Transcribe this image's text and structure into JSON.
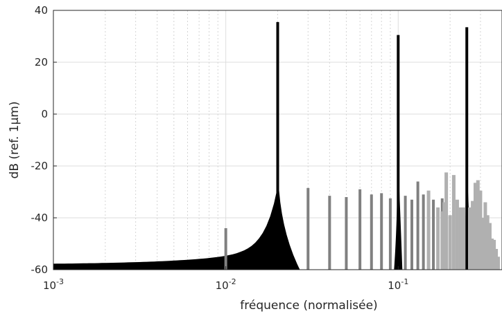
{
  "chart_data": {
    "type": "bar",
    "title": "",
    "xlabel": "fréquence (normalisée)",
    "ylabel": "dB (ref. 1μm)",
    "xscale": "log",
    "xlim": [
      0.001,
      0.4
    ],
    "ylim": [
      -60,
      40
    ],
    "grid": true,
    "x_ticks": [
      {
        "value": 0.001,
        "base": "10",
        "exp": "-3"
      },
      {
        "value": 0.01,
        "base": "10",
        "exp": "-2"
      },
      {
        "value": 0.1,
        "base": "10",
        "exp": "-1"
      }
    ],
    "y_ticks": [
      {
        "value": 40,
        "label": "40"
      },
      {
        "value": 20,
        "label": "20"
      },
      {
        "value": 0,
        "label": "0"
      },
      {
        "value": -20,
        "label": "-20"
      },
      {
        "value": -40,
        "label": "-40"
      },
      {
        "value": -60,
        "label": "-60"
      }
    ],
    "series": [
      {
        "style": "peaks",
        "color": "#000000",
        "peaks": [
          {
            "freq": 0.02,
            "db": 35.5,
            "spread_db": [
              -58,
              -52,
              -48,
              -44,
              -40,
              -36
            ]
          },
          {
            "freq": 0.1,
            "db": 30.5,
            "spread_db": [
              -60,
              -55,
              -50,
              -45
            ]
          },
          {
            "freq": 0.25,
            "db": 33.5,
            "spread_db": [
              -60,
              -55,
              -50
            ]
          }
        ]
      },
      {
        "style": "harmonics",
        "color": "#808080",
        "x": [
          0.01,
          0.03,
          0.04,
          0.05,
          0.06,
          0.07,
          0.08,
          0.09,
          0.11,
          0.12,
          0.13,
          0.14,
          0.15,
          0.16,
          0.17,
          0.18,
          0.19
        ],
        "values": [
          -44,
          -28.5,
          -31.5,
          -32,
          -29,
          -31,
          -30.5,
          -32.5,
          -31.5,
          -33,
          -26,
          -31,
          -34,
          -33,
          -41,
          -32.5,
          -32
        ]
      },
      {
        "style": "dense",
        "color": "#b0b0b0",
        "x": [
          0.15,
          0.17,
          0.18,
          0.185,
          0.19,
          0.2,
          0.21,
          0.22,
          0.23,
          0.24,
          0.26,
          0.27,
          0.28,
          0.29,
          0.3,
          0.31,
          0.32,
          0.33,
          0.34,
          0.35,
          0.36,
          0.37,
          0.38
        ],
        "values": [
          -29.5,
          -36,
          -37.5,
          -34,
          -22.5,
          -39,
          -23.5,
          -33,
          -36,
          -36,
          -36,
          -33.5,
          -26.5,
          -25.5,
          -29.5,
          -40,
          -34,
          -39,
          -42,
          -48,
          -48.5,
          -52,
          -55
        ]
      }
    ]
  }
}
